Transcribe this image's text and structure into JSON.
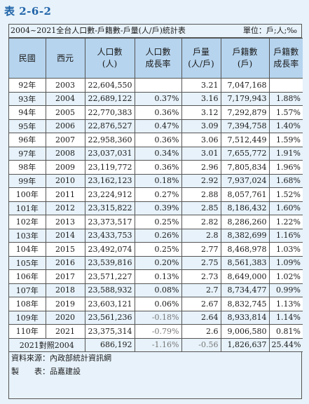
{
  "title": "表 2-6-2",
  "caption": "2004~2021全台人口數-戶籍數-戶量(人/戶)統計表",
  "unit": "單位：戶;人;‰",
  "headers": [
    "民國",
    "西元",
    "人口數\n(人)",
    "人口數\n成長率",
    "戶量\n(人/戶)",
    "戶籍數\n(戶)",
    "戶籍數\n成長率"
  ],
  "rows": [
    [
      "92年",
      "2003",
      "22,604,550",
      "",
      "3.21",
      "7,047,168",
      ""
    ],
    [
      "93年",
      "2004",
      "22,689,122",
      "0.37%",
      "3.16",
      "7,179,943",
      "1.88%"
    ],
    [
      "94年",
      "2005",
      "22,770,383",
      "0.36%",
      "3.12",
      "7,292,879",
      "1.57%"
    ],
    [
      "95年",
      "2006",
      "22,876,527",
      "0.47%",
      "3.09",
      "7,394,758",
      "1.40%"
    ],
    [
      "96年",
      "2007",
      "22,958,360",
      "0.36%",
      "3.06",
      "7,512,449",
      "1.59%"
    ],
    [
      "97年",
      "2008",
      "23,037,031",
      "0.34%",
      "3.01",
      "7,655,772",
      "1.91%"
    ],
    [
      "98年",
      "2009",
      "23,119,772",
      "0.36%",
      "2.96",
      "7,805,834",
      "1.96%"
    ],
    [
      "99年",
      "2010",
      "23,162,123",
      "0.18%",
      "2.92",
      "7,937,024",
      "1.68%"
    ],
    [
      "100年",
      "2011",
      "23,224,912",
      "0.27%",
      "2.88",
      "8,057,761",
      "1.52%"
    ],
    [
      "101年",
      "2012",
      "23,315,822",
      "0.39%",
      "2.85",
      "8,186,432",
      "1.60%"
    ],
    [
      "102年",
      "2013",
      "23,373,517",
      "0.25%",
      "2.82",
      "8,286,260",
      "1.22%"
    ],
    [
      "103年",
      "2014",
      "23,433,753",
      "0.26%",
      "2.8",
      "8,382,699",
      "1.16%"
    ],
    [
      "104年",
      "2015",
      "23,492,074",
      "0.25%",
      "2.77",
      "8,468,978",
      "1.03%"
    ],
    [
      "105年",
      "2016",
      "23,539,816",
      "0.20%",
      "2.75",
      "8,561,383",
      "1.09%"
    ],
    [
      "106年",
      "2017",
      "23,571,227",
      "0.13%",
      "2.73",
      "8,649,000",
      "1.02%"
    ],
    [
      "107年",
      "2018",
      "23,588,932",
      "0.08%",
      "2.7",
      "8,734,477",
      "0.99%"
    ],
    [
      "108年",
      "2019",
      "23,603,121",
      "0.06%",
      "2.67",
      "8,832,745",
      "1.13%"
    ],
    [
      "109年",
      "2020",
      "23,561,236",
      "-0.18%",
      "2.64",
      "8,933,814",
      "1.14%"
    ],
    [
      "110年",
      "2021",
      "23,375,314",
      "-0.79%",
      "2.6",
      "9,006,580",
      "0.81%"
    ]
  ],
  "summary": [
    "2021對照2004",
    "",
    "686,192",
    "-1.16%",
    "-0.56",
    "1,826,637",
    "25.44%"
  ],
  "source": "資料來源：內政部統計資訊網",
  "maker": "製　　表：品嘉建設"
}
